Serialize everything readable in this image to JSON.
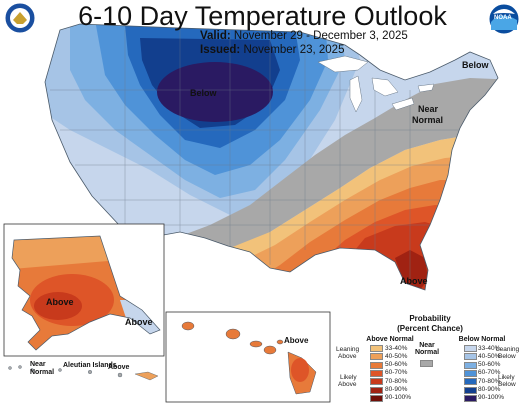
{
  "header": {
    "title": "6-10 Day Temperature Outlook",
    "valid_label": "Valid:",
    "valid_text": "November 29 - December 3, 2025",
    "issued_label": "Issued:",
    "issued_text": "November 23, 2025",
    "noaa_text": "NOAA"
  },
  "map_labels": {
    "below_north_central": "Below",
    "below_northeast": "Below",
    "near_normal_east_1": "Near",
    "near_normal_east_2": "Normal",
    "above_florida": "Above",
    "above_alaska": "Above",
    "above_hawaii": "Above",
    "above_alaska_southeast": "Above",
    "near_normal_aleutian_1": "Near",
    "near_normal_aleutian_2": "Normal",
    "aleutian_islands": "Aleutian Islands",
    "above_aleutian": "Above"
  },
  "legend": {
    "title_1": "Probability",
    "title_2": "(Percent Chance)",
    "above_header": "Above Normal",
    "below_header": "Below Normal",
    "near_header_1": "Near",
    "near_header_2": "Normal",
    "leaning_above_1": "Leaning",
    "leaning_above_2": "Above",
    "likely_above_1": "Likely",
    "likely_above_2": "Above",
    "leaning_below_1": "Leaning",
    "leaning_below_2": "Below",
    "likely_below_1": "Likely",
    "likely_below_2": "Below",
    "above_bins": [
      {
        "label": "33-40%",
        "color": "#f2c27a"
      },
      {
        "label": "40-50%",
        "color": "#eda05a"
      },
      {
        "label": "50-60%",
        "color": "#e77a3a"
      },
      {
        "label": "60-70%",
        "color": "#de5528"
      },
      {
        "label": "70-80%",
        "color": "#c83a1c"
      },
      {
        "label": "80-90%",
        "color": "#a02212"
      },
      {
        "label": "90-100%",
        "color": "#700f08"
      }
    ],
    "below_bins": [
      {
        "label": "33-40%",
        "color": "#c6d6ec"
      },
      {
        "label": "40-50%",
        "color": "#a6c4e6"
      },
      {
        "label": "50-60%",
        "color": "#7db0e2"
      },
      {
        "label": "60-70%",
        "color": "#4f93d8"
      },
      {
        "label": "70-80%",
        "color": "#2569bd"
      },
      {
        "label": "80-90%",
        "color": "#123f8e"
      },
      {
        "label": "90-100%",
        "color": "#2a1a62"
      }
    ],
    "near_color": "#a8a8a8"
  }
}
